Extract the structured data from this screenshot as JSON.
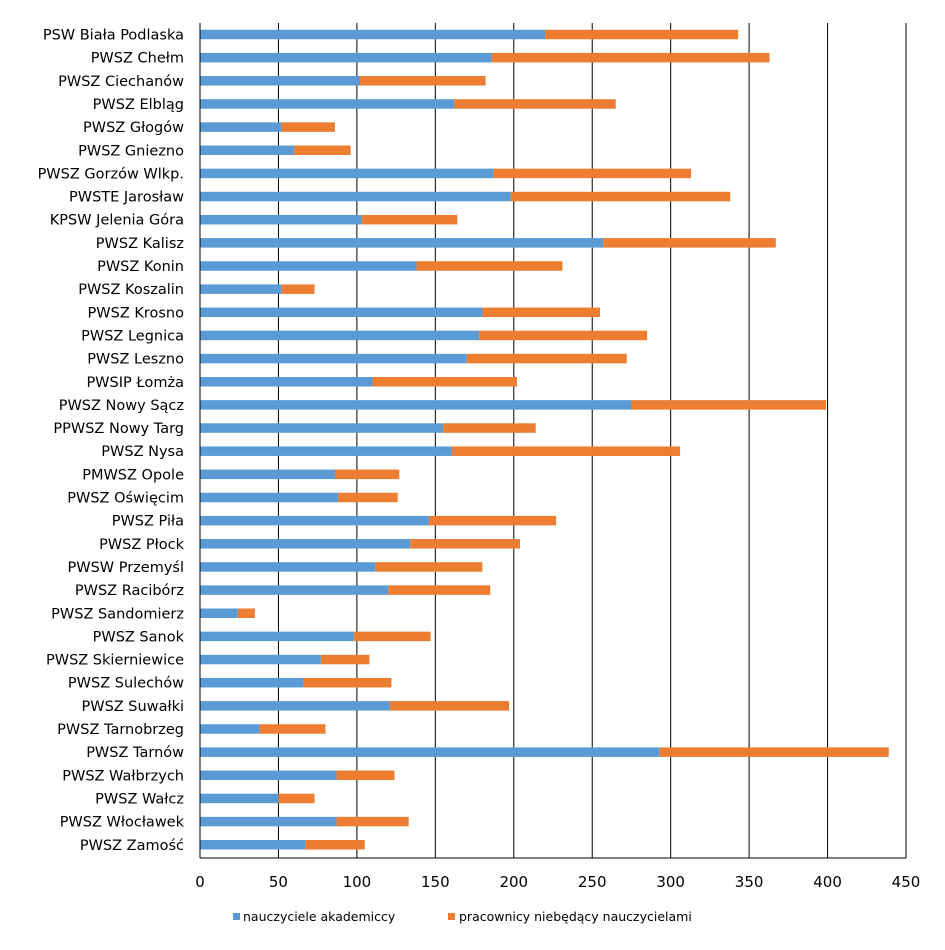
{
  "chart_data": {
    "type": "bar",
    "orientation": "horizontal",
    "stacked": true,
    "title": "",
    "xlabel": "",
    "ylabel": "",
    "xlim": [
      0,
      450
    ],
    "xticks": [
      0,
      50,
      100,
      150,
      200,
      250,
      300,
      350,
      400,
      450
    ],
    "grid": "vertical",
    "legend_position": "bottom",
    "categories": [
      "PSW Biała Podlaska",
      "PWSZ Chełm",
      "PWSZ Ciechanów",
      "PWSZ Elbląg",
      "PWSZ Głogów",
      "PWSZ Gniezno",
      "PWSZ Gorzów Wlkp.",
      "PWSTE Jarosław",
      "KPSW Jelenia Góra",
      "PWSZ Kalisz",
      "PWSZ Konin",
      "PWSZ Koszalin",
      "PWSZ Krosno",
      "PWSZ Legnica",
      "PWSZ Leszno",
      "PWSIP Łomża",
      "PWSZ Nowy Sącz",
      "PPWSZ Nowy Targ",
      "PWSZ Nysa",
      "PMWSZ Opole",
      "PWSZ Oświęcim",
      "PWSZ Piła",
      "PWSZ Płock",
      "PWSW Przemyśl",
      "PWSZ Racibórz",
      "PWSZ Sandomierz",
      "PWSZ Sanok",
      "PWSZ Skierniewice",
      "PWSZ Sulechów",
      "PWSZ Suwałki",
      "PWSZ Tarnobrzeg",
      "PWSZ Tarnów",
      "PWSZ Wałbrzych",
      "PWSZ Wałcz",
      "PWSZ Włocławek",
      "PWSZ Zamość"
    ],
    "series": [
      {
        "name": "nauczyciele akademiccy",
        "color": "#5B9BD5",
        "values": [
          220,
          186,
          102,
          162,
          52,
          60,
          187,
          198,
          103,
          257,
          138,
          52,
          180,
          178,
          170,
          110,
          275,
          155,
          160,
          86,
          88,
          146,
          134,
          112,
          120,
          24,
          98,
          77,
          66,
          121,
          38,
          293,
          87,
          50,
          87,
          67
        ]
      },
      {
        "name": "pracownicy niebędący nauczycielami",
        "color": "#ED7D31",
        "values": [
          123,
          177,
          80,
          103,
          34,
          36,
          126,
          140,
          61,
          110,
          93,
          21,
          75,
          107,
          102,
          92,
          124,
          59,
          146,
          41,
          38,
          81,
          70,
          68,
          65,
          11,
          49,
          31,
          56,
          76,
          42,
          146,
          37,
          23,
          46,
          38
        ]
      }
    ]
  }
}
